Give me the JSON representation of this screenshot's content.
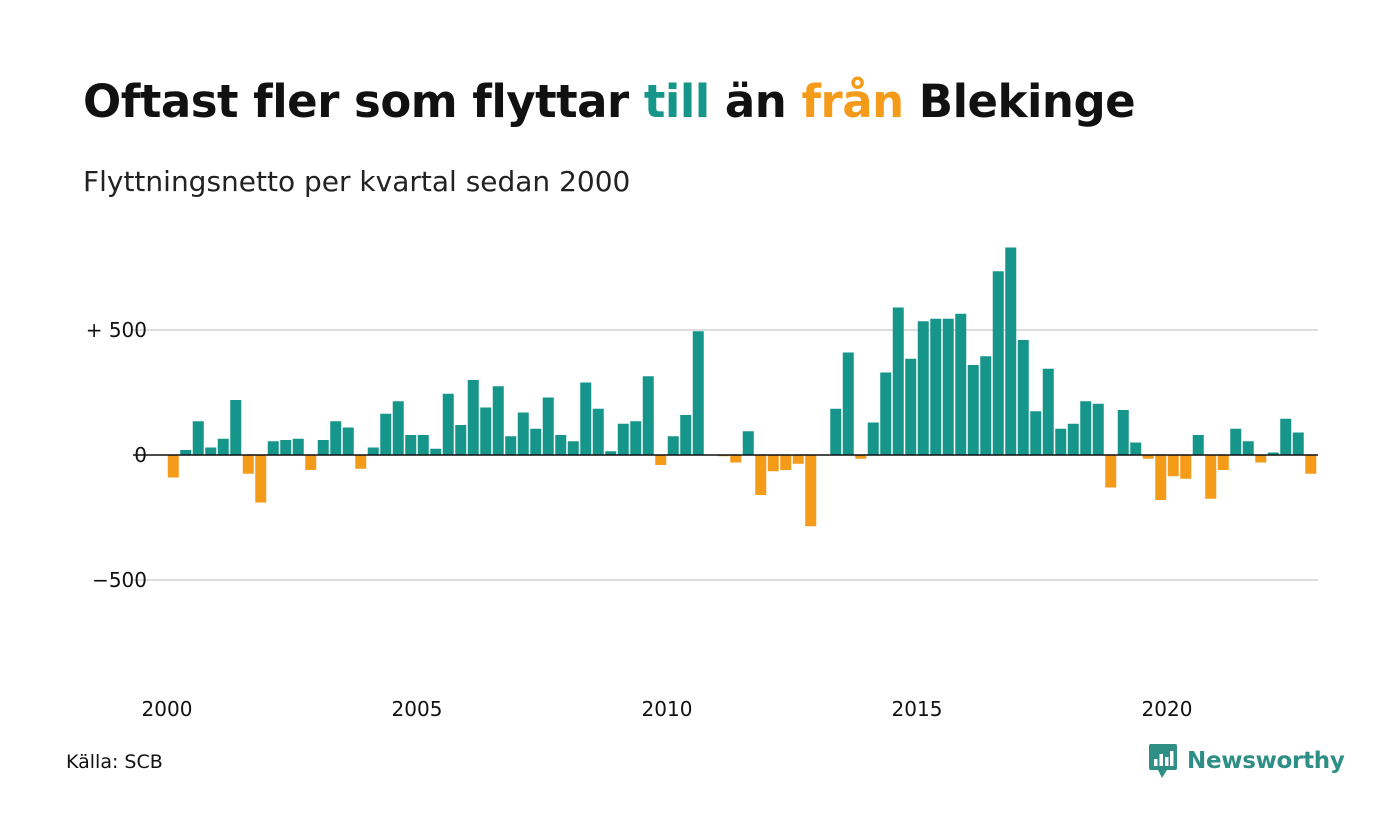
{
  "header": {
    "title_part1": "Oftast fler som flyttar ",
    "title_pos": "till",
    "title_part2": " än ",
    "title_neg": "från",
    "title_part3": " Blekinge",
    "subtitle": "Flyttningsnetto per kvartal sedan 2000"
  },
  "footer": {
    "source": "Källa: SCB",
    "brand": "Newsworthy"
  },
  "colors": {
    "positive": "#16968a",
    "negative": "#f49b1a",
    "grid": "#dddddd",
    "zero_line": "#111111",
    "text": "#111111"
  },
  "chart_data": {
    "type": "bar",
    "title": "Oftast fler som flyttar till än från Blekinge",
    "subtitle": "Flyttningsnetto per kvartal sedan 2000",
    "x_start": "2000 Q1",
    "x_interval": "quarter",
    "x_tick_labels": [
      "2000",
      "2005",
      "2010",
      "2015",
      "2020"
    ],
    "y_ticks": [
      500,
      0,
      -500
    ],
    "y_tick_labels": [
      "+ 500",
      "0",
      "−500"
    ],
    "ylim": [
      -900,
      900
    ],
    "grid": true,
    "values": [
      -90,
      20,
      135,
      30,
      65,
      220,
      -75,
      -190,
      55,
      60,
      65,
      -60,
      60,
      135,
      110,
      -55,
      30,
      165,
      215,
      80,
      80,
      25,
      245,
      120,
      300,
      190,
      275,
      75,
      170,
      105,
      230,
      80,
      55,
      290,
      185,
      15,
      125,
      135,
      315,
      -40,
      75,
      160,
      495,
      0,
      -5,
      -30,
      95,
      -160,
      -65,
      -60,
      -35,
      -285,
      0,
      185,
      410,
      -15,
      130,
      330,
      590,
      385,
      535,
      545,
      545,
      565,
      360,
      395,
      735,
      830,
      460,
      175,
      345,
      105,
      125,
      215,
      205,
      -130,
      180,
      50,
      -15,
      -180,
      -85,
      -95,
      80,
      -175,
      -60,
      105,
      55,
      -30,
      10,
      145,
      90,
      -75
    ]
  }
}
